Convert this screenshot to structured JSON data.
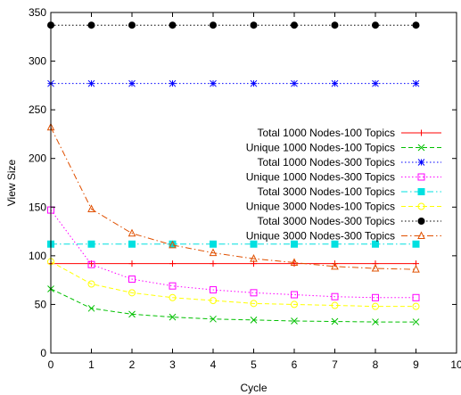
{
  "chart_data": {
    "type": "line",
    "xlabel": "Cycle",
    "ylabel": "View Size",
    "xlim": [
      0,
      10
    ],
    "ylim": [
      0,
      350
    ],
    "xticks": [
      0,
      1,
      2,
      3,
      4,
      5,
      6,
      7,
      8,
      9,
      10
    ],
    "yticks": [
      0,
      50,
      100,
      150,
      200,
      250,
      300,
      350
    ],
    "grid": false,
    "legend_position": "right",
    "x": [
      0,
      1,
      2,
      3,
      4,
      5,
      6,
      7,
      8,
      9
    ],
    "series": [
      {
        "name": "Total 1000 Nodes-100 Topics",
        "color": "#ff0000",
        "dash": "solid",
        "marker": "plus",
        "values": [
          92,
          92,
          92,
          92,
          92,
          92,
          92,
          92,
          92,
          92
        ]
      },
      {
        "name": "Unique 1000 Nodes-100 Topics",
        "color": "#00c000",
        "dash": "dashed",
        "marker": "cross",
        "values": [
          66,
          46,
          40,
          37,
          35,
          34,
          33,
          32.5,
          32,
          32
        ]
      },
      {
        "name": "Total 1000 Nodes-300 Topics",
        "color": "#0000ff",
        "dash": "dotted",
        "marker": "star",
        "values": [
          277,
          277,
          277,
          277,
          277,
          277,
          277,
          277,
          277,
          277
        ]
      },
      {
        "name": "Unique 1000 Nodes-300 Topics",
        "color": "#ff00ff",
        "dash": "dotted",
        "marker": "square-open",
        "values": [
          147,
          91,
          76,
          69,
          65,
          62,
          60,
          58,
          57,
          57
        ]
      },
      {
        "name": "Total 3000 Nodes-100 Topics",
        "color": "#00e0e0",
        "dash": "dashdot",
        "marker": "square-filled",
        "values": [
          112,
          112,
          112,
          112,
          112,
          112,
          112,
          112,
          112,
          112
        ]
      },
      {
        "name": "Unique 3000 Nodes-100 Topics",
        "color": "#ffff00",
        "dash": "dashed",
        "marker": "circle-open",
        "values": [
          94,
          71,
          62,
          57,
          54,
          51,
          50,
          49,
          48,
          48
        ]
      },
      {
        "name": "Total 3000 Nodes-300 Topics",
        "color": "#000000",
        "dash": "dotted",
        "marker": "circle-filled",
        "values": [
          337,
          337,
          337,
          337,
          337,
          337,
          337,
          337,
          337,
          337
        ]
      },
      {
        "name": "Unique 3000 Nodes-300 Topics",
        "color": "#e05000",
        "dash": "dashdot",
        "marker": "triangle-open",
        "values": [
          232,
          148,
          123,
          111,
          103,
          97,
          93,
          89,
          87,
          86
        ]
      }
    ]
  }
}
